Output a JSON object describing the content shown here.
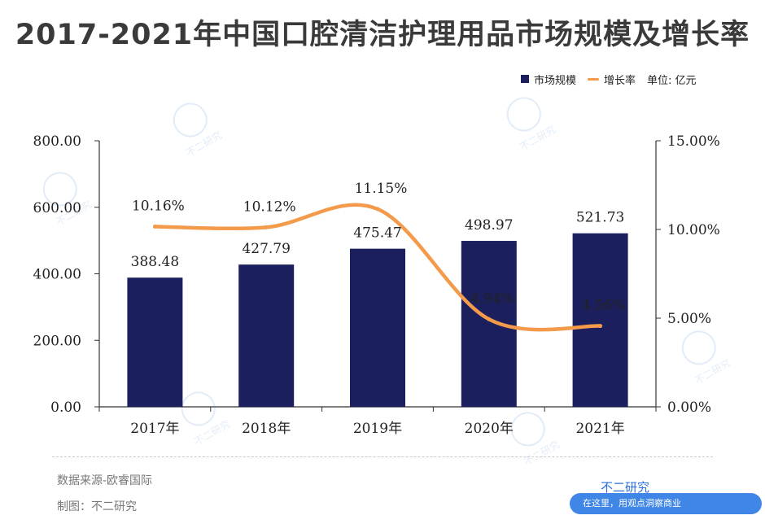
{
  "title": "2017-2021年中国口腔清洁护理用品市场规模及增长率",
  "legend": {
    "bar_label": "市场规模",
    "line_label": "增长率",
    "unit": "单位: 亿元"
  },
  "footer": {
    "source": "数据来源-欧睿国际",
    "maker": "制图：不二研究",
    "brand": "不二研究",
    "promo": "在这里，用观点洞察商业"
  },
  "watermark": "不二研究",
  "colors": {
    "bar": "#1b1f5e",
    "line": "#f39a4b",
    "axis": "#333333"
  },
  "chart_data": {
    "type": "bar",
    "title": "2017-2021年中国口腔清洁护理用品市场规模及增长率",
    "categories": [
      "2017年",
      "2018年",
      "2019年",
      "2020年",
      "2021年"
    ],
    "series": [
      {
        "name": "市场规模",
        "type": "bar",
        "axis": "left",
        "values": [
          388.48,
          427.79,
          475.47,
          498.97,
          521.73
        ],
        "labels": [
          "388.48",
          "427.79",
          "475.47",
          "498.97",
          "521.73"
        ]
      },
      {
        "name": "增长率",
        "type": "line",
        "axis": "right",
        "values": [
          10.16,
          10.12,
          11.15,
          4.94,
          4.56
        ],
        "labels": [
          "10.16%",
          "10.12%",
          "11.15%",
          "4.94%",
          "4.56%"
        ]
      }
    ],
    "y_left": {
      "ylim": [
        0,
        800
      ],
      "ticks": [
        "0.00",
        "200.00",
        "400.00",
        "600.00",
        "800.00"
      ],
      "tick_values": [
        0,
        200,
        400,
        600,
        800
      ]
    },
    "y_right": {
      "ylim": [
        0,
        15
      ],
      "ticks": [
        "0.00%",
        "5.00%",
        "10.00%",
        "15.00%"
      ],
      "tick_values": [
        0,
        5,
        10,
        15
      ]
    },
    "grid": false,
    "legend_position": "top-right"
  }
}
